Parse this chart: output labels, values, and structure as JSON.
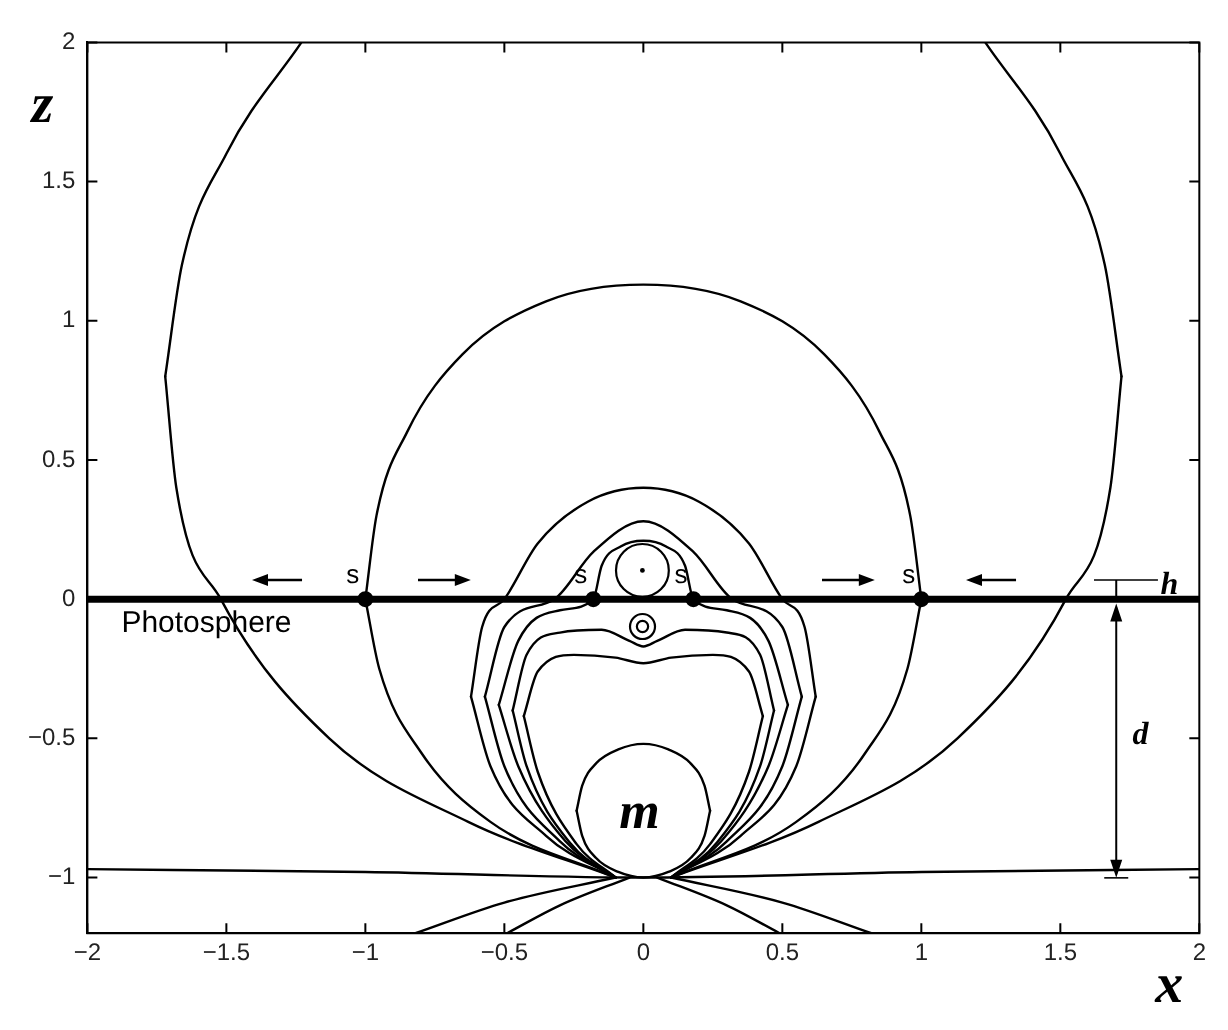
{
  "chart_data": {
    "type": "line",
    "xlabel": "x",
    "ylabel": "z",
    "xlim": [
      -2,
      2
    ],
    "ylim": [
      -1.2,
      2
    ],
    "xticks": [
      -2,
      -1.5,
      -1,
      -0.5,
      0,
      0.5,
      1,
      1.5,
      2
    ],
    "yticks": [
      -1,
      -0.5,
      0,
      0.5,
      1,
      1.5,
      2
    ],
    "grid": false,
    "legend": false,
    "marker": "none",
    "line_style": "solid",
    "ref_lines": [
      {
        "axis": "y",
        "value": 0,
        "label": "Photosphere",
        "color": "#000000"
      }
    ],
    "annotations": [
      {
        "text": "m",
        "x": 0,
        "y": -1
      },
      "d",
      "h"
    ],
    "series": [
      {
        "color": "#000000",
        "x": [
          -1.72,
          -1.68,
          -1.52,
          -1.13,
          -0.63,
          -0.1
        ],
        "values": [
          0.8,
          0.4,
          0,
          -0.5,
          -0.8,
          -1
        ]
      },
      {
        "color": "#000000",
        "x": [
          -1.72,
          -1.66,
          -1.5,
          -1.23
        ],
        "values": [
          0.8,
          1.2,
          1.6,
          2
        ]
      },
      {
        "color": "#000000",
        "x": [
          0.1,
          0.63,
          1.13,
          1.52,
          1.68,
          1.72
        ],
        "values": [
          -1,
          -0.8,
          -0.5,
          0,
          0.4,
          0.8
        ]
      },
      {
        "color": "#000000",
        "x": [
          1.23,
          1.5,
          1.66,
          1.72
        ],
        "values": [
          2,
          1.6,
          1.2,
          0.8
        ]
      },
      {
        "color": "#000000",
        "x": [
          -1,
          -0.95,
          -0.8,
          -0.55,
          -0.1
        ],
        "values": [
          0,
          -0.25,
          -0.55,
          -0.8,
          -1
        ]
      },
      {
        "color": "#000000",
        "x": [
          -1,
          -0.96,
          -0.85,
          -0.65,
          -0.35,
          0,
          0.35,
          0.65,
          0.85,
          0.96,
          1
        ],
        "values": [
          0,
          0.3,
          0.6,
          0.88,
          1.07,
          1.13,
          1.07,
          0.88,
          0.6,
          0.3,
          0
        ]
      },
      {
        "color": "#000000",
        "x": [
          0.1,
          0.55,
          0.8,
          0.95,
          1
        ],
        "values": [
          -1,
          -0.8,
          -0.55,
          -0.25,
          0
        ]
      },
      {
        "color": "#000000",
        "x": [
          -0.62,
          -0.55,
          -0.35,
          -0.1
        ],
        "values": [
          -0.35,
          -0.6,
          -0.85,
          -1
        ]
      },
      {
        "color": "#000000",
        "x": [
          -0.62,
          -0.58,
          -0.5,
          -0.38,
          -0.2,
          0,
          0.2,
          0.38,
          0.5,
          0.58,
          0.62
        ],
        "values": [
          -0.35,
          -0.1,
          0,
          0.2,
          0.35,
          0.4,
          0.35,
          0.2,
          0,
          -0.1,
          -0.35
        ]
      },
      {
        "color": "#000000",
        "x": [
          0.1,
          0.35,
          0.55,
          0.62
        ],
        "values": [
          -1,
          -0.85,
          -0.6,
          -0.35
        ]
      },
      {
        "color": "#000000",
        "x": [
          -0.57,
          -0.5,
          -0.3,
          -0.1
        ],
        "values": [
          -0.35,
          -0.6,
          -0.87,
          -1
        ]
      },
      {
        "color": "#000000",
        "x": [
          -0.57,
          -0.5,
          -0.32,
          -0.18,
          0,
          0.18,
          0.32,
          0.5,
          0.57
        ],
        "values": [
          -0.35,
          -0.1,
          0,
          0.17,
          0.28,
          0.17,
          0,
          -0.1,
          -0.35
        ]
      },
      {
        "color": "#000000",
        "x": [
          0.1,
          0.3,
          0.5,
          0.57
        ],
        "values": [
          -1,
          -0.87,
          -0.6,
          -0.35
        ]
      },
      {
        "color": "#000000",
        "x": [
          -0.52,
          -0.45,
          -0.28,
          -0.1
        ],
        "values": [
          -0.38,
          -0.6,
          -0.87,
          -1
        ]
      },
      {
        "color": "#000000",
        "x": [
          -0.52,
          -0.45,
          -0.3,
          -0.18,
          -0.15,
          -0.08,
          0,
          0.08,
          0.15,
          0.18,
          0.3,
          0.45,
          0.52
        ],
        "values": [
          -0.38,
          -0.15,
          -0.04,
          0,
          0.12,
          0.19,
          0.21,
          0.19,
          0.12,
          0,
          -0.04,
          -0.15,
          -0.38
        ]
      },
      {
        "color": "#000000",
        "x": [
          0.1,
          0.28,
          0.45,
          0.52
        ],
        "values": [
          -1,
          -0.87,
          -0.6,
          -0.38
        ]
      },
      {
        "color": "#000000",
        "x": [
          -0.47,
          -0.42,
          -0.26,
          -0.1
        ],
        "values": [
          -0.4,
          -0.6,
          -0.88,
          -1
        ]
      },
      {
        "color": "#000000",
        "x": [
          -0.47,
          -0.42,
          -0.3,
          -0.15,
          -0.05,
          0,
          0.05,
          0.15,
          0.3,
          0.42,
          0.47
        ],
        "values": [
          -0.4,
          -0.2,
          -0.12,
          -0.11,
          -0.15,
          -0.17,
          -0.15,
          -0.11,
          -0.12,
          -0.2,
          -0.4
        ]
      },
      {
        "color": "#000000",
        "x": [
          0.1,
          0.26,
          0.42,
          0.47
        ],
        "values": [
          -1,
          -0.88,
          -0.6,
          -0.4
        ]
      },
      {
        "color": "#000000",
        "x": [
          -0.43,
          -0.38,
          -0.24,
          -0.1
        ],
        "values": [
          -0.42,
          -0.62,
          -0.88,
          -1
        ]
      },
      {
        "color": "#000000",
        "x": [
          -0.43,
          -0.38,
          -0.25,
          -0.1,
          0,
          0.1,
          0.25,
          0.38,
          0.43
        ],
        "values": [
          -0.42,
          -0.26,
          -0.2,
          -0.21,
          -0.23,
          -0.21,
          -0.2,
          -0.26,
          -0.42
        ]
      },
      {
        "color": "#000000",
        "x": [
          0.1,
          0.24,
          0.38,
          0.43
        ],
        "values": [
          -1,
          -0.88,
          -0.62,
          -0.42
        ]
      },
      {
        "color": "#000000",
        "x": [
          -0.24,
          -0.22,
          -0.17,
          -0.09,
          0,
          0.09,
          0.17,
          0.22,
          0.24
        ],
        "values": [
          -0.76,
          -0.85,
          -0.93,
          -0.98,
          -1,
          -0.98,
          -0.93,
          -0.85,
          -0.76
        ]
      },
      {
        "color": "#000000",
        "x": [
          -0.24,
          -0.22,
          -0.17,
          -0.09,
          0,
          0.09,
          0.17,
          0.22,
          0.24
        ],
        "values": [
          -0.76,
          -0.67,
          -0.59,
          -0.54,
          -0.52,
          -0.54,
          -0.59,
          -0.67,
          -0.76
        ]
      },
      {
        "color": "#000000",
        "x": [
          -2,
          -1,
          0,
          1,
          2
        ],
        "values": [
          -0.97,
          -0.98,
          -1,
          -0.98,
          -0.97
        ]
      },
      {
        "color": "#000000",
        "x": [
          -0.82,
          -0.5,
          -0.1
        ],
        "values": [
          -1.2,
          -1.09,
          -1
        ]
      },
      {
        "color": "#000000",
        "x": [
          -0.49,
          -0.3,
          -0.05
        ],
        "values": [
          -1.2,
          -1.1,
          -1
        ]
      },
      {
        "color": "#000000",
        "x": [
          0.1,
          0.5,
          0.82
        ],
        "values": [
          -1,
          -1.09,
          -1.2
        ]
      },
      {
        "color": "#000000",
        "x": [
          0.05,
          0.3,
          0.49
        ],
        "values": [
          -1,
          -1.1,
          -1.2
        ]
      },
      {
        "type": "scatter",
        "marker": "circle",
        "color": "#000000",
        "x": [
          -1,
          -0.18,
          0.18,
          1
        ],
        "values": [
          0,
          0,
          0,
          0
        ],
        "value_labels": [
          "s",
          "s",
          "s",
          "s"
        ]
      }
    ]
  }
}
